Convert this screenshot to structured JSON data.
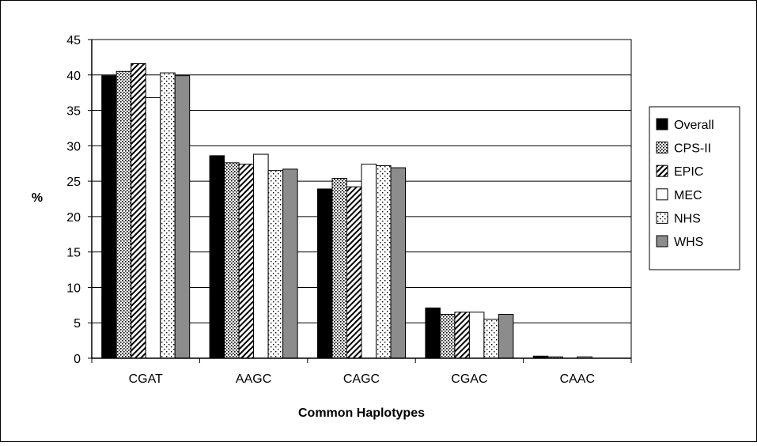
{
  "chart_data": {
    "type": "bar",
    "title": "",
    "xlabel": "Common Haplotypes",
    "ylabel": "%",
    "ylim": [
      0,
      45
    ],
    "yticks": [
      0,
      5,
      10,
      15,
      20,
      25,
      30,
      35,
      40,
      45
    ],
    "grid": true,
    "legend_position": "right",
    "categories": [
      "CGAT",
      "AAGC",
      "CAGC",
      "CGAC",
      "CAAC"
    ],
    "series": [
      {
        "name": "Overall",
        "pattern": "solid-black",
        "values": [
          39.9,
          28.6,
          23.9,
          7.1,
          0.3
        ]
      },
      {
        "name": "CPS-II",
        "pattern": "dense-dots",
        "values": [
          40.5,
          27.6,
          25.4,
          6.2,
          0.2
        ]
      },
      {
        "name": "EPIC",
        "pattern": "diagonal-hatch",
        "values": [
          41.6,
          27.4,
          24.2,
          6.5,
          0.0
        ]
      },
      {
        "name": "MEC",
        "pattern": "white",
        "values": [
          36.8,
          28.8,
          27.4,
          6.5,
          0.2
        ]
      },
      {
        "name": "NHS",
        "pattern": "sparse-dots",
        "values": [
          40.3,
          26.5,
          27.2,
          5.5,
          0.0
        ]
      },
      {
        "name": "WHS",
        "pattern": "solid-gray",
        "values": [
          39.9,
          26.7,
          26.9,
          6.2,
          0.0
        ]
      }
    ],
    "colors": {
      "black": "#000000",
      "gray": "#8c8c8c",
      "white": "#ffffff"
    }
  }
}
